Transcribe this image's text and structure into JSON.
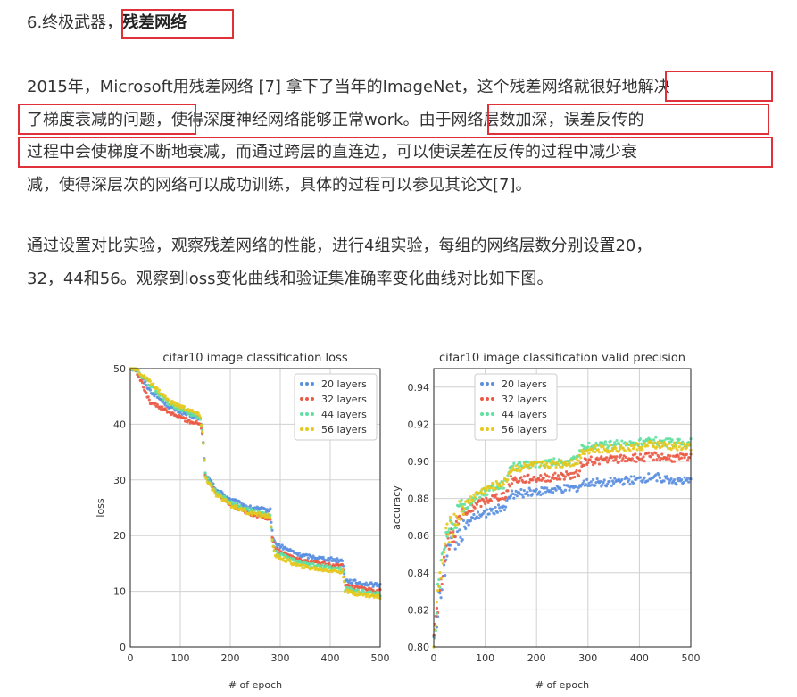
{
  "heading": {
    "number": "6.终极武器，",
    "highlight": "残差网络"
  },
  "paragraph1": {
    "line1_a": "2015年，Microsoft用残差网络 [7] 拿下了当年的ImageNet，这个残差网络就",
    "line1_b": "很好地解决",
    "line2_a": "了梯度衰减的问题，",
    "line2_b": "使得深度神经网络能够正常work。",
    "line2_c": "由于网络层数加深，误差反传的",
    "line3": "过程中会使梯度不断地衰减，而通过跨层的直连边，可以使误差在反传的过程中减少衰",
    "line4": "减，使得深层次的网络可以成功训练，具体的过程可以参见其论文[7]。"
  },
  "paragraph2": {
    "line1": "通过设置对比实验，观察残差网络的性能，进行4组实验，每组的网络层数分别设置20，",
    "line2": "32，44和56。观察到loss变化曲线和验证集准确率变化曲线对比如下图。"
  },
  "colors": {
    "s20": "#5b8fe0",
    "s32": "#ea5a45",
    "s44": "#5fe0a0",
    "s56": "#e6c81e",
    "highlight_box": "#e0303a"
  },
  "chart_data": [
    {
      "type": "scatter",
      "title": "cifar10 image classification loss",
      "xlabel": "# of epoch",
      "ylabel": "loss",
      "xlim": [
        0,
        500
      ],
      "ylim": [
        0,
        50
      ],
      "xticks": [
        "0",
        "100",
        "200",
        "300",
        "400",
        "500"
      ],
      "yticks": [
        "0",
        "10",
        "20",
        "30",
        "40",
        "50"
      ],
      "grid": true,
      "legend": "top-right",
      "series": [
        {
          "name": "20 layers",
          "color": "#5b8fe0",
          "points": [
            [
              10,
              50
            ],
            [
              40,
              46
            ],
            [
              80,
              43
            ],
            [
              120,
              41.5
            ],
            [
              140,
              41
            ],
            [
              145,
              38
            ],
            [
              150,
              31
            ],
            [
              170,
              28.5
            ],
            [
              200,
              26.5
            ],
            [
              240,
              25
            ],
            [
              280,
              24.5
            ],
            [
              285,
              20
            ],
            [
              290,
              18.5
            ],
            [
              340,
              16.5
            ],
            [
              380,
              16
            ],
            [
              425,
              15.5
            ],
            [
              430,
              12
            ],
            [
              460,
              11.5
            ],
            [
              500,
              11
            ]
          ]
        },
        {
          "name": "32 layers",
          "color": "#ea5a45",
          "points": [
            [
              10,
              50
            ],
            [
              40,
              44
            ],
            [
              80,
              42
            ],
            [
              120,
              40.5
            ],
            [
              140,
              40
            ],
            [
              145,
              38
            ],
            [
              150,
              31
            ],
            [
              170,
              28
            ],
            [
              200,
              25.5
            ],
            [
              240,
              24
            ],
            [
              280,
              23
            ],
            [
              285,
              19
            ],
            [
              290,
              17.5
            ],
            [
              340,
              15.5
            ],
            [
              380,
              15
            ],
            [
              425,
              14.5
            ],
            [
              430,
              11
            ],
            [
              460,
              10.5
            ],
            [
              500,
              10
            ]
          ]
        },
        {
          "name": "44 layers",
          "color": "#5fe0a0",
          "points": [
            [
              10,
              50
            ],
            [
              40,
              47
            ],
            [
              80,
              43.5
            ],
            [
              120,
              42
            ],
            [
              140,
              41
            ],
            [
              145,
              38
            ],
            [
              150,
              31
            ],
            [
              170,
              28
            ],
            [
              200,
              26
            ],
            [
              240,
              24.5
            ],
            [
              280,
              23.5
            ],
            [
              285,
              18.5
            ],
            [
              290,
              17
            ],
            [
              340,
              15
            ],
            [
              380,
              14.5
            ],
            [
              425,
              14
            ],
            [
              430,
              10.5
            ],
            [
              460,
              10
            ],
            [
              500,
              9.5
            ]
          ]
        },
        {
          "name": "56 layers",
          "color": "#e6c81e",
          "points": [
            [
              10,
              50
            ],
            [
              40,
              47.5
            ],
            [
              80,
              44
            ],
            [
              120,
              42.5
            ],
            [
              140,
              41.5
            ],
            [
              145,
              38
            ],
            [
              150,
              30.5
            ],
            [
              170,
              27.5
            ],
            [
              200,
              25.5
            ],
            [
              240,
              24
            ],
            [
              280,
              23.5
            ],
            [
              285,
              18
            ],
            [
              290,
              16.5
            ],
            [
              340,
              14.5
            ],
            [
              380,
              14
            ],
            [
              425,
              13.5
            ],
            [
              430,
              10
            ],
            [
              460,
              9.5
            ],
            [
              500,
              9
            ]
          ]
        }
      ]
    },
    {
      "type": "scatter",
      "title": "cifar10 image classification valid precision",
      "xlabel": "# of epoch",
      "ylabel": "accuracy",
      "xlim": [
        0,
        500
      ],
      "ylim": [
        0.8,
        0.95
      ],
      "xticks": [
        "0",
        "100",
        "200",
        "300",
        "400",
        "500"
      ],
      "yticks": [
        "0.80",
        "0.82",
        "0.84",
        "0.86",
        "0.88",
        "0.90",
        "0.92",
        "0.94"
      ],
      "grid": true,
      "legend": "top-left",
      "series": [
        {
          "name": "20 layers",
          "color": "#5b8fe0",
          "points": [
            [
              0,
              0.8
            ],
            [
              10,
              0.825
            ],
            [
              25,
              0.85
            ],
            [
              50,
              0.862
            ],
            [
              80,
              0.87
            ],
            [
              110,
              0.873
            ],
            [
              140,
              0.876
            ],
            [
              150,
              0.882
            ],
            [
              200,
              0.884
            ],
            [
              250,
              0.885
            ],
            [
              280,
              0.886
            ],
            [
              290,
              0.888
            ],
            [
              350,
              0.889
            ],
            [
              400,
              0.89
            ],
            [
              430,
              0.892
            ],
            [
              460,
              0.89
            ],
            [
              500,
              0.889
            ]
          ]
        },
        {
          "name": "32 layers",
          "color": "#ea5a45",
          "points": [
            [
              0,
              0.8
            ],
            [
              10,
              0.83
            ],
            [
              25,
              0.855
            ],
            [
              50,
              0.868
            ],
            [
              80,
              0.876
            ],
            [
              110,
              0.88
            ],
            [
              140,
              0.882
            ],
            [
              150,
              0.89
            ],
            [
              200,
              0.891
            ],
            [
              250,
              0.892
            ],
            [
              280,
              0.893
            ],
            [
              290,
              0.9
            ],
            [
              350,
              0.901
            ],
            [
              400,
              0.902
            ],
            [
              430,
              0.903
            ],
            [
              460,
              0.902
            ],
            [
              500,
              0.902
            ]
          ]
        },
        {
          "name": "44 layers",
          "color": "#5fe0a0",
          "points": [
            [
              0,
              0.8
            ],
            [
              10,
              0.835
            ],
            [
              25,
              0.86
            ],
            [
              50,
              0.872
            ],
            [
              80,
              0.881
            ],
            [
              110,
              0.885
            ],
            [
              140,
              0.888
            ],
            [
              150,
              0.897
            ],
            [
              200,
              0.899
            ],
            [
              250,
              0.9
            ],
            [
              280,
              0.901
            ],
            [
              290,
              0.908
            ],
            [
              350,
              0.909
            ],
            [
              400,
              0.91
            ],
            [
              430,
              0.911
            ],
            [
              460,
              0.91
            ],
            [
              500,
              0.91
            ]
          ]
        },
        {
          "name": "56 layers",
          "color": "#e6c81e",
          "points": [
            [
              0,
              0.8
            ],
            [
              10,
              0.833
            ],
            [
              25,
              0.86
            ],
            [
              50,
              0.873
            ],
            [
              80,
              0.882
            ],
            [
              110,
              0.886
            ],
            [
              140,
              0.889
            ],
            [
              150,
              0.896
            ],
            [
              200,
              0.898
            ],
            [
              250,
              0.899
            ],
            [
              280,
              0.9
            ],
            [
              290,
              0.906
            ],
            [
              350,
              0.907
            ],
            [
              400,
              0.908
            ],
            [
              430,
              0.909
            ],
            [
              460,
              0.908
            ],
            [
              500,
              0.908
            ]
          ]
        }
      ]
    }
  ]
}
